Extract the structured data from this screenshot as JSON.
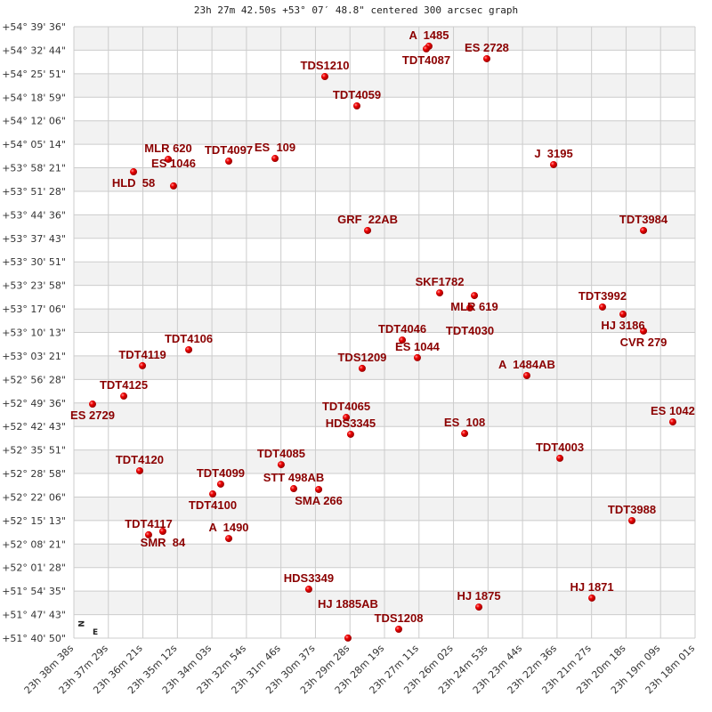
{
  "chart_data": {
    "type": "scatter",
    "title": "23h 27m 42.50s +53° 07′ 48.8\" centered 300 arcsec graph",
    "x_unit": "RA (degrees)",
    "y_unit": "Dec (degrees)",
    "xlim_deg": [
      354.658,
      349.504
    ],
    "ylim_deg": [
      51.6806,
      54.66
    ],
    "x_ticks": [
      "23h 38m 38s",
      "23h 37m 29s",
      "23h 36m 21s",
      "23h 35m 12s",
      "23h 34m 03s",
      "23h 32m 54s",
      "23h 31m 46s",
      "23h 30m 37s",
      "23h 29m 28s",
      "23h 28m 19s",
      "23h 27m 11s",
      "23h 26m 02s",
      "23h 24m 53s",
      "23h 23m 44s",
      "23h 22m 36s",
      "23h 21m 27s",
      "23h 20m 18s",
      "23h 19m 09s",
      "23h 18m 01s"
    ],
    "y_ticks": [
      "+54° 39' 36\"",
      "+54° 32' 44\"",
      "+54° 25' 51\"",
      "+54° 18' 59\"",
      "+54° 12' 06\"",
      "+54° 05' 14\"",
      "+53° 58' 21\"",
      "+53° 51' 28\"",
      "+53° 44' 36\"",
      "+53° 37' 43\"",
      "+53° 30' 51\"",
      "+53° 23' 58\"",
      "+53° 17' 06\"",
      "+53° 10' 13\"",
      "+53° 03' 21\"",
      "+52° 56' 28\"",
      "+52° 49' 36\"",
      "+52° 42' 43\"",
      "+52° 35' 51\"",
      "+52° 28' 58\"",
      "+52° 22' 06\"",
      "+52° 15' 13\"",
      "+52° 08' 21\"",
      "+52° 01' 28\"",
      "+51° 54' 35\"",
      "+51° 47' 43\"",
      "+51° 40' 50\""
    ],
    "grid": true,
    "compass": {
      "north": "N",
      "east": "E"
    },
    "colors": {
      "label": "#8b0000",
      "point": "#dd0000",
      "band": "#f2f2f2",
      "grid": "#cccccc"
    },
    "points": [
      {
        "name": "A  1485",
        "ra": 351.712,
        "dec": 54.565
      },
      {
        "name": "TDT4087",
        "ra": 351.734,
        "dec": 54.552
      },
      {
        "name": "ES 2728",
        "ra": 351.232,
        "dec": 54.504
      },
      {
        "name": "TDS1210",
        "ra": 352.576,
        "dec": 54.417
      },
      {
        "name": "TDT4059",
        "ra": 352.31,
        "dec": 54.274
      },
      {
        "name": "MLR 620",
        "ra": 353.875,
        "dec": 54.014
      },
      {
        "name": "HLD  58",
        "ra": 354.163,
        "dec": 53.953
      },
      {
        "name": "ES 1046",
        "ra": 353.831,
        "dec": 53.884
      },
      {
        "name": "TDT4097",
        "ra": 353.373,
        "dec": 54.005
      },
      {
        "name": "ES  109",
        "ra": 352.989,
        "dec": 54.018
      },
      {
        "name": "J  3195",
        "ra": 350.678,
        "dec": 53.988
      },
      {
        "name": "GRF  22AB",
        "ra": 352.221,
        "dec": 53.667
      },
      {
        "name": "TDT3984",
        "ra": 349.932,
        "dec": 53.667
      },
      {
        "name": "SKF1782",
        "ra": 351.623,
        "dec": 53.363
      },
      {
        "name": "MLR 619",
        "ra": 351.335,
        "dec": 53.35
      },
      {
        "name": "TDT4030",
        "ra": 351.372,
        "dec": 53.29
      },
      {
        "name": "TDT3992",
        "ra": 350.272,
        "dec": 53.294
      },
      {
        "name": "HJ 3186",
        "ra": 350.102,
        "dec": 53.259
      },
      {
        "name": "CVR 279",
        "ra": 349.932,
        "dec": 53.177
      },
      {
        "name": "TDT4046",
        "ra": 351.933,
        "dec": 53.133
      },
      {
        "name": "ES 1044",
        "ra": 351.808,
        "dec": 53.047
      },
      {
        "name": "TDT4106",
        "ra": 353.705,
        "dec": 53.086
      },
      {
        "name": "TDT4119",
        "ra": 354.089,
        "dec": 53.008
      },
      {
        "name": "TDS1209",
        "ra": 352.266,
        "dec": 52.995
      },
      {
        "name": "A  1484AB",
        "ra": 350.9,
        "dec": 52.96
      },
      {
        "name": "TDT4125",
        "ra": 354.244,
        "dec": 52.86
      },
      {
        "name": "ES 2729",
        "ra": 354.503,
        "dec": 52.821
      },
      {
        "name": "TDT4065",
        "ra": 352.398,
        "dec": 52.756
      },
      {
        "name": "HDS3345",
        "ra": 352.362,
        "dec": 52.674
      },
      {
        "name": "ES  108",
        "ra": 351.416,
        "dec": 52.678
      },
      {
        "name": "ES 1042",
        "ra": 349.689,
        "dec": 52.734
      },
      {
        "name": "TDT4003",
        "ra": 350.626,
        "dec": 52.557
      },
      {
        "name": "TDT4120",
        "ra": 354.112,
        "dec": 52.496
      },
      {
        "name": "TDT4085",
        "ra": 352.938,
        "dec": 52.526
      },
      {
        "name": "TDT4099",
        "ra": 353.44,
        "dec": 52.431
      },
      {
        "name": "TDT4100",
        "ra": 353.506,
        "dec": 52.383
      },
      {
        "name": "STT 498AB",
        "ra": 352.834,
        "dec": 52.409
      },
      {
        "name": "SMA 266",
        "ra": 352.627,
        "dec": 52.405
      },
      {
        "name": "TDT3988",
        "ra": 350.028,
        "dec": 52.253
      },
      {
        "name": "TDT4117",
        "ra": 354.038,
        "dec": 52.184
      },
      {
        "name": "SMR  84",
        "ra": 353.92,
        "dec": 52.201
      },
      {
        "name": "A  1490",
        "ra": 353.373,
        "dec": 52.166
      },
      {
        "name": "HDS3349",
        "ra": 352.709,
        "dec": 51.919
      },
      {
        "name": "HJ 1875",
        "ra": 351.298,
        "dec": 51.832
      },
      {
        "name": "HJ 1871",
        "ra": 350.36,
        "dec": 51.876
      },
      {
        "name": "TDS1208",
        "ra": 351.963,
        "dec": 51.724
      },
      {
        "name": "HJ 1885AB",
        "ra": 352.384,
        "dec": 51.681
      }
    ]
  }
}
